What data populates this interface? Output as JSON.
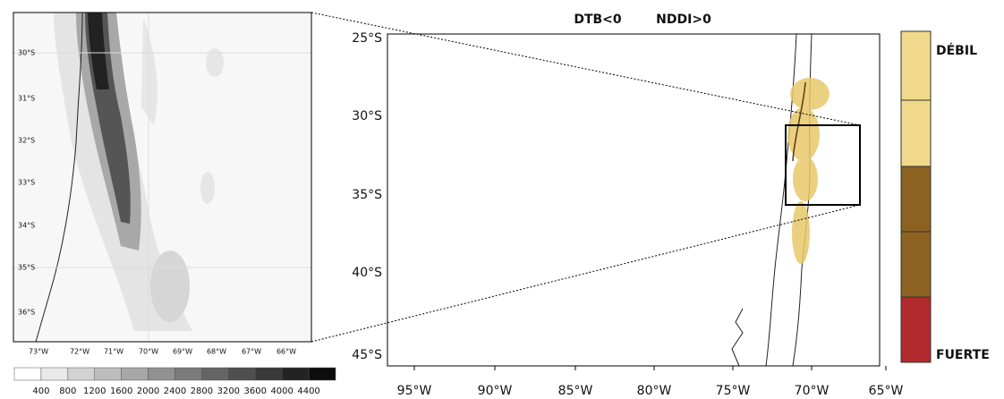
{
  "inset": {
    "y_labels": [
      "30°S",
      "31°S",
      "32°S",
      "33°S",
      "34°S",
      "35°S",
      "36°S"
    ],
    "x_labels": [
      "73°W",
      "72°W",
      "71°W",
      "70°W",
      "69°W",
      "68°W",
      "67°W",
      "66°W"
    ]
  },
  "colorbar": {
    "labels": [
      400,
      800,
      1200,
      1600,
      2000,
      2400,
      2800,
      3200,
      3600,
      4000,
      4400
    ]
  },
  "map": {
    "title": [
      "DTB<0",
      "NDDI>0"
    ],
    "y_labels": [
      "25°S",
      "30°S",
      "35°S",
      "40°S",
      "45°S"
    ],
    "x_labels": [
      "95°W",
      "90°W",
      "85°W",
      "80°W",
      "75°W",
      "70°W",
      "65°W"
    ]
  },
  "legend": {
    "weak": "DÉBIL",
    "strong": "FUERTE"
  }
}
